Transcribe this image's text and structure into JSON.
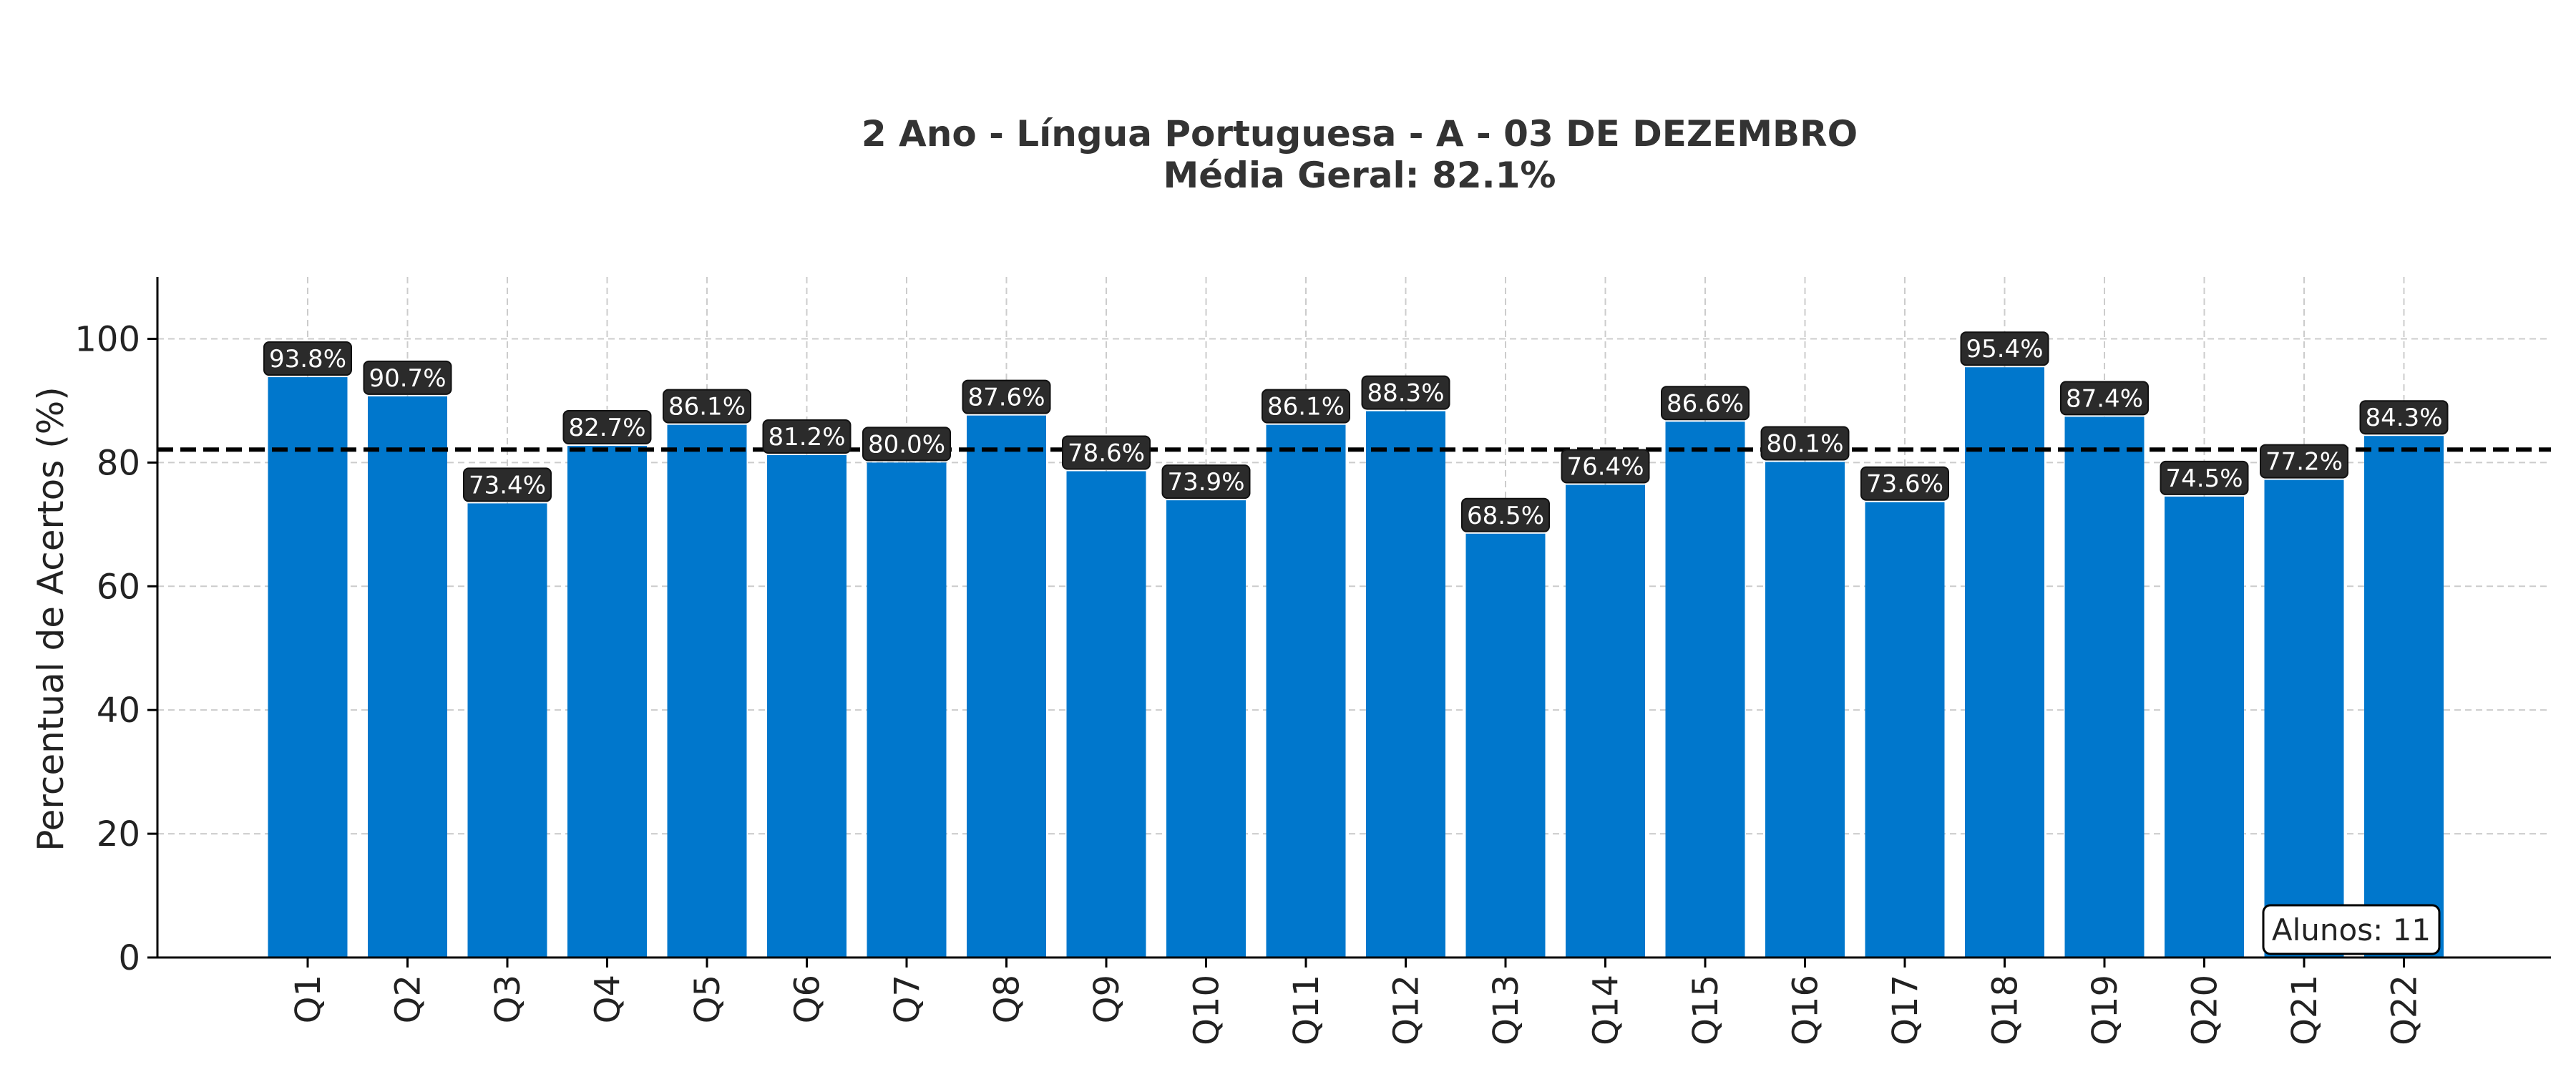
{
  "chart_data": {
    "type": "bar",
    "title": "2 Ano - Língua Portuguesa - A - 03 DE DEZEMBRO",
    "subtitle": "Média Geral: 82.1%",
    "xlabel": "",
    "ylabel": "Percentual de Acertos (%)",
    "ylim": [
      0,
      110
    ],
    "yticks": [
      "0",
      "20",
      "40",
      "60",
      "80",
      "100"
    ],
    "grid": true,
    "categories": [
      "Q1",
      "Q2",
      "Q3",
      "Q4",
      "Q5",
      "Q6",
      "Q7",
      "Q8",
      "Q9",
      "Q10",
      "Q11",
      "Q12",
      "Q13",
      "Q14",
      "Q15",
      "Q16",
      "Q17",
      "Q18",
      "Q19",
      "Q20",
      "Q21",
      "Q22"
    ],
    "values": [
      93.8,
      90.7,
      73.4,
      82.7,
      86.1,
      81.2,
      80.0,
      87.6,
      78.6,
      73.9,
      86.1,
      88.3,
      68.5,
      76.4,
      86.6,
      80.1,
      73.6,
      95.4,
      87.4,
      74.5,
      77.2,
      84.3
    ],
    "labels": [
      "93.8%",
      "90.7%",
      "73.4%",
      "82.7%",
      "86.1%",
      "81.2%",
      "80.0%",
      "87.6%",
      "78.6%",
      "73.9%",
      "86.1%",
      "88.3%",
      "68.5%",
      "76.4%",
      "86.6%",
      "80.1%",
      "73.6%",
      "95.4%",
      "87.4%",
      "74.5%",
      "77.2%",
      "84.3%"
    ],
    "average_line": 82.1,
    "annotation": "Alunos: 11",
    "colors": {
      "bar": "#0077cc",
      "label_bg": "#2b2b2b",
      "average_line": "#000000",
      "grid": "#cccccc"
    }
  }
}
